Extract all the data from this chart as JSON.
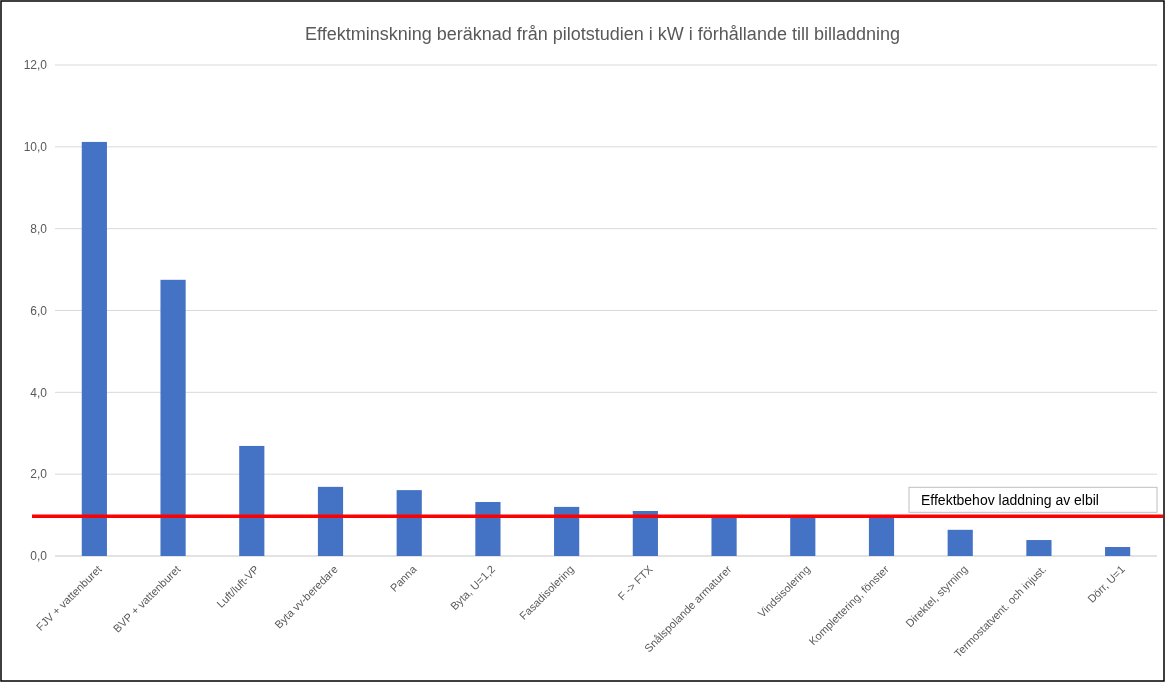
{
  "chart_data": {
    "type": "bar",
    "title": "Effektminskning beräknad från pilotstudien i kW i förhållande  till billaddning",
    "categories": [
      "FJV + vattenburet",
      "BVP + vattenburet",
      "Luft/luft-VP",
      "Byta vv-beredare",
      "Panna",
      "Byta, U=1,2",
      "Fasadisolering",
      "F -> FTX",
      "Snålspolande armaturer",
      "Vindsisolering",
      "Komplettering, fönster",
      "Direktel, styrning",
      "Termostatvent. och injust.",
      "Dörr, U=1"
    ],
    "values": [
      10.12,
      6.75,
      2.69,
      1.69,
      1.61,
      1.32,
      1.2,
      1.1,
      1.0,
      0.95,
      0.95,
      0.64,
      0.39,
      0.22
    ],
    "color": "#4472c4",
    "ylim": [
      0,
      12
    ],
    "yticks": [
      {
        "value": 0,
        "label": "0,0"
      },
      {
        "value": 2,
        "label": "2,0"
      },
      {
        "value": 4,
        "label": "4,0"
      },
      {
        "value": 6,
        "label": "6,0"
      },
      {
        "value": 8,
        "label": "8,0"
      },
      {
        "value": 10,
        "label": "10,0"
      },
      {
        "value": 12,
        "label": "12,0"
      }
    ],
    "grid": "y",
    "ref_lines": [
      {
        "axis": "y",
        "value": 0.97,
        "label": "Effektbehov laddning av elbil",
        "color": "#ff0000"
      }
    ]
  }
}
